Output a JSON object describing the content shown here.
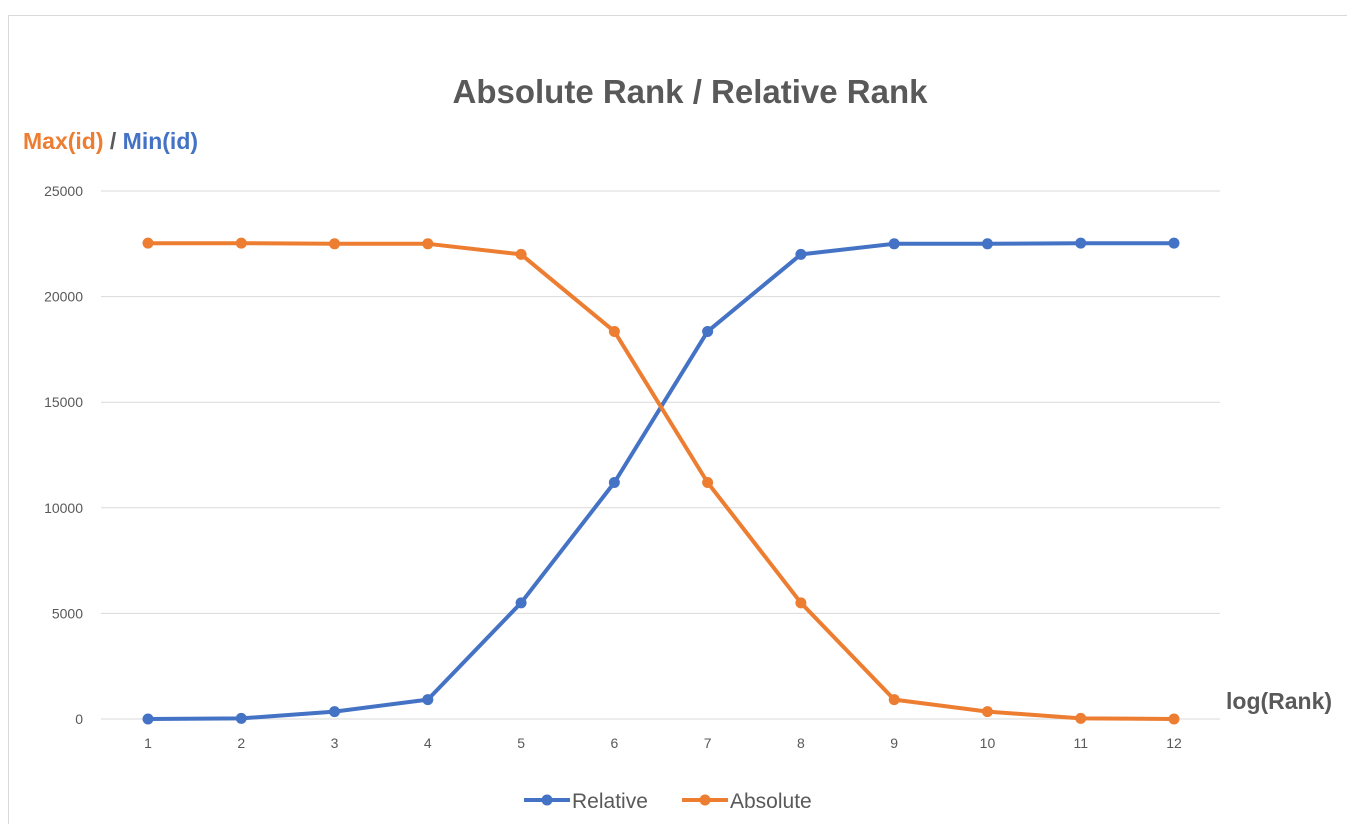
{
  "chart_data": {
    "type": "line",
    "title": "Absolute Rank / Relative Rank",
    "ylabel": {
      "part1": "Max(id)",
      "separator": " / ",
      "part2": "Min(id)"
    },
    "xlabel": "log(Rank)",
    "x": [
      1,
      2,
      3,
      4,
      5,
      6,
      7,
      8,
      9,
      10,
      11,
      12
    ],
    "ylim": [
      0,
      25000
    ],
    "yticks": [
      0,
      5000,
      10000,
      15000,
      20000,
      25000
    ],
    "grid": true,
    "legend_position": "bottom",
    "series": [
      {
        "name": "Relative",
        "color": "#4472c4",
        "values": [
          0,
          30,
          350,
          920,
          5500,
          11200,
          18350,
          22000,
          22500,
          22500,
          22530,
          22530
        ]
      },
      {
        "name": "Absolute",
        "color": "#ed7d31",
        "values": [
          22530,
          22530,
          22500,
          22500,
          22000,
          18350,
          11200,
          5500,
          920,
          350,
          30,
          0
        ]
      }
    ]
  },
  "colors": {
    "ylabel_part1": "#ed7d31",
    "ylabel_separator": "#595959",
    "ylabel_part2": "#4472c4",
    "gridline": "#d9d9d9",
    "text": "#595959"
  }
}
